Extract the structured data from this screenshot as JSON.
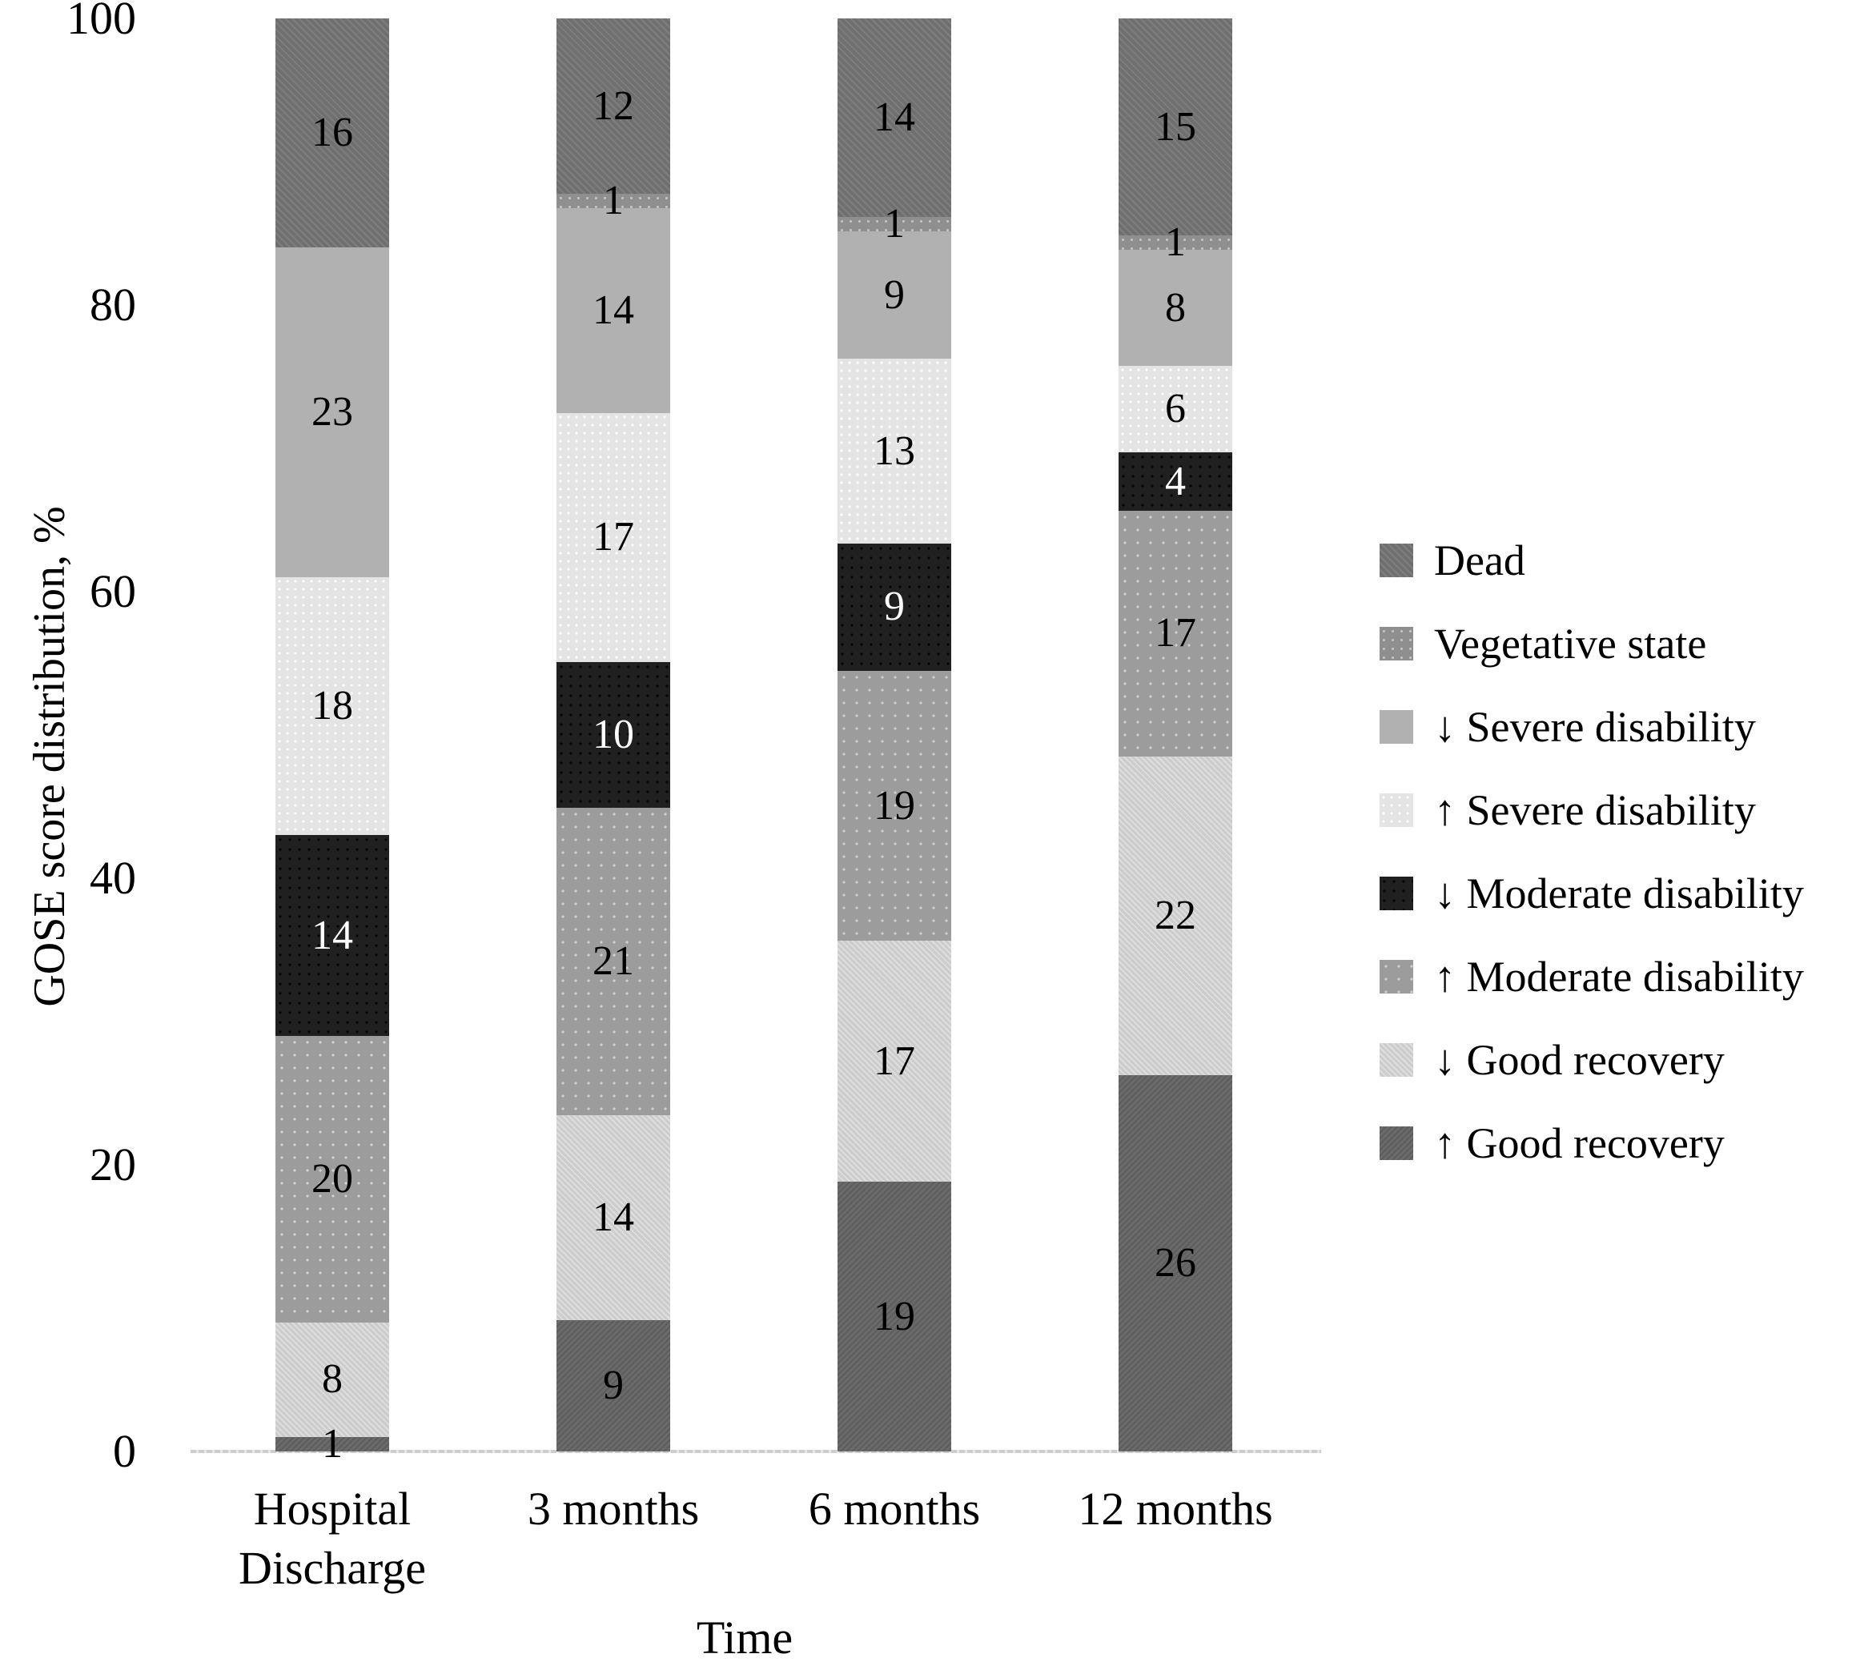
{
  "chart_data": {
    "type": "bar",
    "subtype": "stacked-vertical-percent",
    "title": "",
    "xlabel": "Time",
    "ylabel": "GOSE score distribution, %",
    "ylim": [
      0,
      100
    ],
    "yticks": [
      0,
      20,
      40,
      60,
      80,
      100
    ],
    "grid": false,
    "legend_position": "right",
    "categories": [
      "Hospital Discharge",
      "3 months",
      "6 months",
      "12 months"
    ],
    "stack_note": "series listed in top-to-bottom stack order; values are percentages shown as data labels; null = segment absent",
    "series": [
      {
        "name": "Dead",
        "key": "dead",
        "color": "#6f6f6f",
        "values": [
          16,
          12,
          14,
          15
        ]
      },
      {
        "name": "Vegetative state",
        "key": "vegetative",
        "color": "#8f8f8f",
        "values": [
          null,
          1,
          1,
          1
        ]
      },
      {
        "name": "↓ Severe disability",
        "key": "severe-down",
        "color": "#b1b1b1",
        "values": [
          23,
          14,
          9,
          8
        ]
      },
      {
        "name": "↑ Severe disability",
        "key": "severe-up",
        "color": "#e4e4e4",
        "values": [
          18,
          17,
          13,
          6
        ]
      },
      {
        "name": "↓ Moderate disability",
        "key": "moderate-down",
        "color": "#202020",
        "values": [
          14,
          10,
          9,
          4
        ]
      },
      {
        "name": "↑ Moderate disability",
        "key": "moderate-up",
        "color": "#9c9c9c",
        "values": [
          20,
          21,
          19,
          17
        ]
      },
      {
        "name": "↓ Good recovery",
        "key": "good-down",
        "color": "#cccccc",
        "values": [
          8,
          14,
          17,
          22
        ]
      },
      {
        "name": "↑ Good recovery",
        "key": "good-up",
        "color": "#6a6a6a",
        "values": [
          1,
          9,
          19,
          26
        ]
      }
    ]
  }
}
